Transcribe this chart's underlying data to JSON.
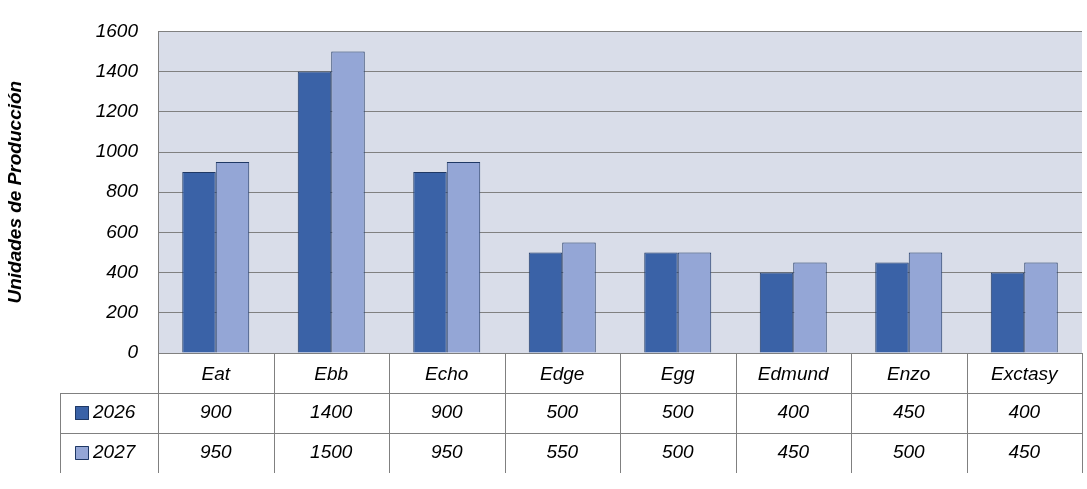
{
  "chart_data": {
    "type": "bar",
    "ylabel": "Unidades de Producción",
    "categories": [
      "Eat",
      "Ebb",
      "Echo",
      "Edge",
      "Egg",
      "Edmund",
      "Enzo",
      "Exctasy"
    ],
    "series": [
      {
        "name": "2026",
        "color": "#3a62a7",
        "values": [
          900,
          1400,
          900,
          500,
          500,
          400,
          450,
          400
        ]
      },
      {
        "name": "2027",
        "color": "#94a6d6",
        "values": [
          950,
          1500,
          950,
          550,
          500,
          450,
          500,
          450
        ]
      }
    ],
    "ylim": [
      0,
      1600
    ],
    "yticks": [
      0,
      200,
      400,
      600,
      800,
      1000,
      1200,
      1400,
      1600
    ],
    "grid": "y",
    "legend": "bottom",
    "data_labels": true
  }
}
